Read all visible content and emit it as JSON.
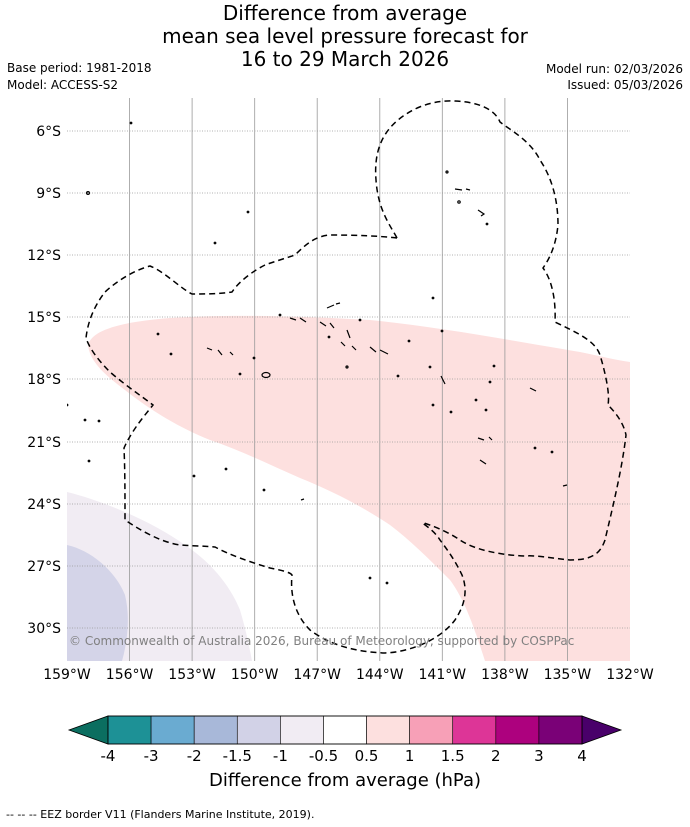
{
  "title": {
    "line1": "Difference from average",
    "line2": "mean sea level pressure forecast for",
    "line3": "16 to 29 March 2026"
  },
  "meta": {
    "base_period": "Base period: 1981-2018",
    "model": "Model: ACCESS-S2",
    "model_run": "Model run: 02/03/2026",
    "issued": "Issued: 05/03/2026"
  },
  "map": {
    "lon_labels": [
      "159°W",
      "156°W",
      "153°W",
      "150°W",
      "147°W",
      "144°W",
      "141°W",
      "138°W",
      "135°W",
      "132°W"
    ],
    "lat_labels": [
      "6°S",
      "9°S",
      "12°S",
      "15°S",
      "18°S",
      "21°S",
      "24°S",
      "27°S",
      "30°S"
    ],
    "copyright": "© Commonwealth of Australia 2026, Bureau of Meteorology, supported by COSPPac",
    "region_colors": {
      "positive_0_5_to_1": "#fde0df",
      "negative_0_5_to_1": "#f1ecf3",
      "negative_1_to_1_5": "#d4d4e8"
    }
  },
  "colorbar": {
    "title": "Difference from average (hPa)",
    "ticks": [
      "-4",
      "-3",
      "-2",
      "-1.5",
      "-1",
      "-0.5",
      "0.5",
      "1",
      "1.5",
      "2",
      "3",
      "4"
    ],
    "colors": [
      "#1d9196",
      "#6aabd1",
      "#a8b8d9",
      "#d2d2e7",
      "#f1ecf3",
      "#ffffff",
      "#fde0df",
      "#f7a0b7",
      "#dd3597",
      "#ad017e",
      "#7a0177"
    ],
    "under_color": "#0b6e60",
    "over_color": "#49006a"
  },
  "footnote": "-- -- -- EEZ border V11 (Flanders Marine Institute, 2019)."
}
